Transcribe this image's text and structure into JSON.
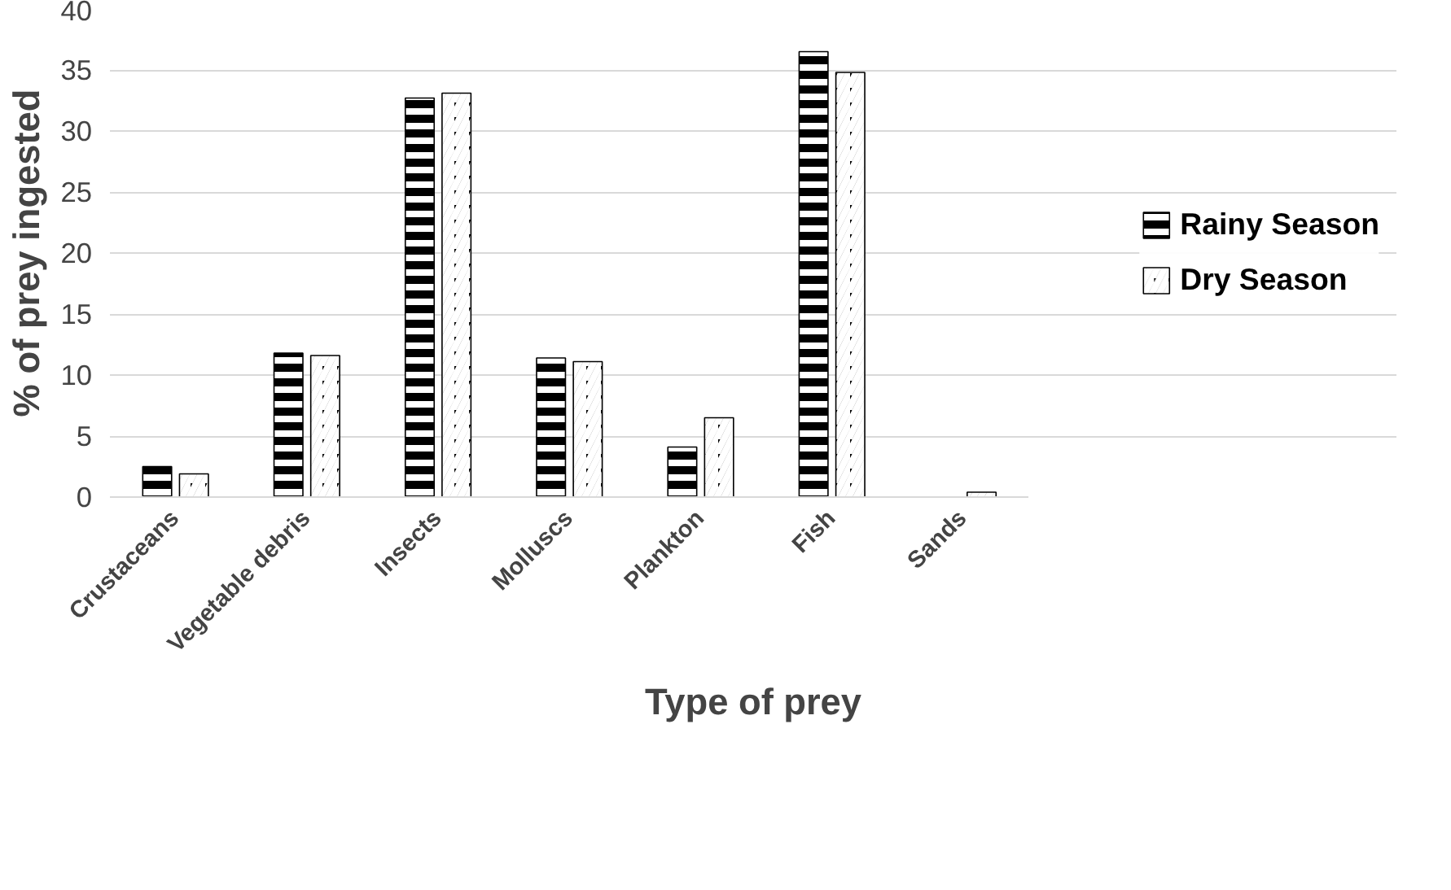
{
  "chart_data": {
    "type": "bar",
    "xlabel": "Type of prey",
    "ylabel": "% of prey ingested",
    "categories": [
      "Crustaceans",
      "Vegetable debris",
      "Insects",
      "Molluscs",
      "Plankton",
      "Fish",
      "Sands"
    ],
    "series": [
      {
        "name": "Rainy Season",
        "color": "#000000",
        "values": [
          2.5,
          11.8,
          32.7,
          11.4,
          4.1,
          36.5,
          0
        ]
      },
      {
        "name": "Dry Season",
        "color": "#000000",
        "values": [
          1.9,
          11.6,
          33.1,
          11.1,
          6.5,
          34.8,
          0.4
        ]
      }
    ],
    "ylim": [
      0,
      40
    ],
    "yticks": [
      0,
      5,
      10,
      15,
      20,
      25,
      30,
      35,
      40
    ],
    "grid": "y",
    "legend": "right"
  }
}
